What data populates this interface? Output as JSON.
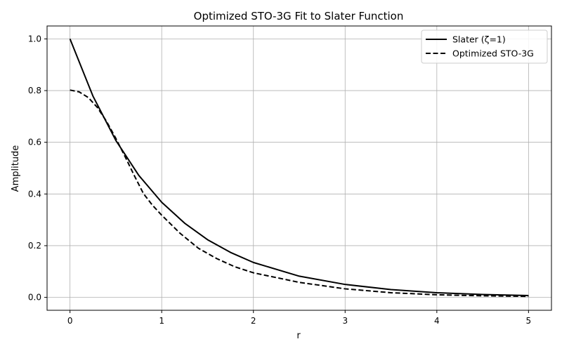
{
  "chart_data": {
    "type": "line",
    "title": "Optimized STO-3G Fit to Slater Function",
    "xlabel": "r",
    "ylabel": "Amplitude",
    "xlim": [
      -0.25,
      5.25
    ],
    "ylim": [
      -0.05,
      1.05
    ],
    "xticks": [
      0,
      1,
      2,
      3,
      4,
      5
    ],
    "yticks": [
      0.0,
      0.2,
      0.4,
      0.6,
      0.8,
      1.0
    ],
    "grid": true,
    "legend_position": "top-right",
    "series": [
      {
        "name": "Slater (ζ=1)",
        "style": "solid",
        "color": "#000000",
        "x": [
          0,
          0.25,
          0.5,
          0.75,
          1.0,
          1.25,
          1.5,
          1.75,
          2.0,
          2.5,
          3.0,
          3.5,
          4.0,
          4.5,
          5.0
        ],
        "y": [
          1.0,
          0.779,
          0.607,
          0.472,
          0.368,
          0.287,
          0.223,
          0.174,
          0.135,
          0.082,
          0.05,
          0.03,
          0.018,
          0.011,
          0.007
        ]
      },
      {
        "name": "Optimized STO-3G",
        "style": "dashed",
        "color": "#000000",
        "x": [
          0,
          0.1,
          0.2,
          0.3,
          0.4,
          0.5,
          0.6,
          0.7,
          0.8,
          0.9,
          1.0,
          1.2,
          1.4,
          1.6,
          1.8,
          2.0,
          2.5,
          3.0,
          3.5,
          4.0,
          4.5,
          5.0
        ],
        "y": [
          0.802,
          0.795,
          0.773,
          0.734,
          0.68,
          0.615,
          0.545,
          0.472,
          0.402,
          0.356,
          0.318,
          0.248,
          0.19,
          0.15,
          0.118,
          0.095,
          0.058,
          0.033,
          0.018,
          0.01,
          0.006,
          0.004
        ]
      }
    ]
  }
}
